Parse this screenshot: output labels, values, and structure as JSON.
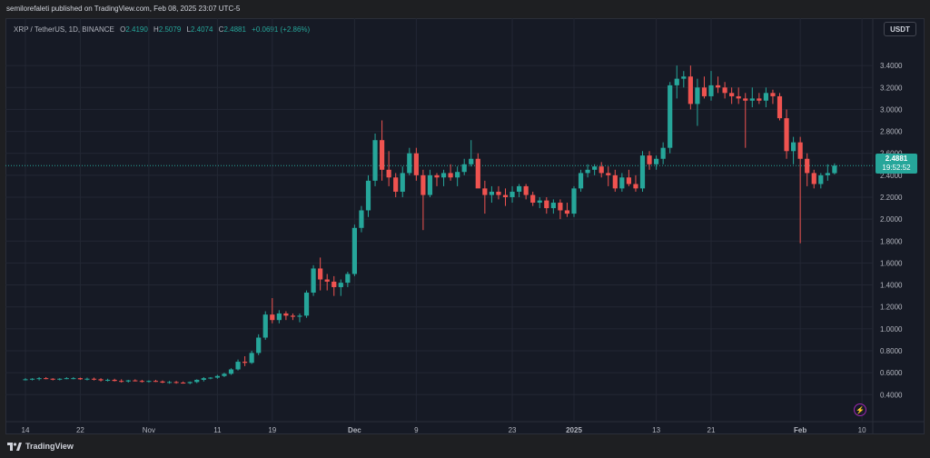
{
  "header": {
    "published": "semilorefaleti published on TradingView.com, Feb 08, 2025 23:07 UTC-5"
  },
  "legend": {
    "symbol": "XRP / TetherUS, 1D, BINANCE",
    "open_label": "O",
    "open": "2.4190",
    "high_label": "H",
    "high": "2.5079",
    "low_label": "L",
    "low": "2.4074",
    "close_label": "C",
    "close": "2.4881",
    "change": "+0.0691 (+2.86%)"
  },
  "currency_button": "USDT",
  "last_price": {
    "value": "2.4881",
    "countdown": "19:52:52"
  },
  "footer": {
    "brand": "TradingView"
  },
  "colors": {
    "up": "#26a69a",
    "down": "#ef5350",
    "background": "#161a25",
    "grid": "#232734",
    "text": "#b2b5be"
  },
  "chart_data": {
    "type": "candlestick",
    "y_ticks": [
      "3.4000",
      "3.2000",
      "3.0000",
      "2.8000",
      "2.6000",
      "2.4000",
      "2.2000",
      "2.0000",
      "1.8000",
      "1.6000",
      "1.4000",
      "1.2000",
      "1.0000",
      "0.8000",
      "0.6000",
      "0.4000"
    ],
    "ylim": [
      0.22,
      3.6
    ],
    "x_ticks": [
      "14",
      "22",
      "Nov",
      "11",
      "19",
      "Dec",
      "9",
      "23",
      "2025",
      "13",
      "21",
      "Feb",
      "10"
    ],
    "x_tick_days": [
      0,
      8,
      18,
      28,
      36,
      48,
      57,
      71,
      80,
      92,
      100,
      113,
      122
    ],
    "bold_ticks": [
      "Dec",
      "2025",
      "Feb"
    ],
    "grid": true,
    "candles": [
      [
        0.54,
        0.55,
        0.53,
        0.54
      ],
      [
        0.54,
        0.55,
        0.53,
        0.545
      ],
      [
        0.545,
        0.56,
        0.53,
        0.55
      ],
      [
        0.55,
        0.56,
        0.54,
        0.545
      ],
      [
        0.545,
        0.55,
        0.53,
        0.54
      ],
      [
        0.54,
        0.55,
        0.53,
        0.545
      ],
      [
        0.545,
        0.56,
        0.54,
        0.55
      ],
      [
        0.55,
        0.56,
        0.54,
        0.55
      ],
      [
        0.55,
        0.555,
        0.535,
        0.54
      ],
      [
        0.54,
        0.555,
        0.53,
        0.545
      ],
      [
        0.545,
        0.555,
        0.53,
        0.54
      ],
      [
        0.54,
        0.55,
        0.52,
        0.53
      ],
      [
        0.53,
        0.545,
        0.52,
        0.535
      ],
      [
        0.535,
        0.545,
        0.52,
        0.525
      ],
      [
        0.525,
        0.54,
        0.51,
        0.52
      ],
      [
        0.52,
        0.535,
        0.51,
        0.53
      ],
      [
        0.53,
        0.54,
        0.52,
        0.525
      ],
      [
        0.525,
        0.535,
        0.51,
        0.52
      ],
      [
        0.52,
        0.53,
        0.51,
        0.525
      ],
      [
        0.525,
        0.535,
        0.515,
        0.52
      ],
      [
        0.52,
        0.53,
        0.505,
        0.51
      ],
      [
        0.51,
        0.525,
        0.5,
        0.515
      ],
      [
        0.515,
        0.525,
        0.5,
        0.51
      ],
      [
        0.51,
        0.52,
        0.5,
        0.505
      ],
      [
        0.505,
        0.52,
        0.495,
        0.515
      ],
      [
        0.515,
        0.54,
        0.505,
        0.535
      ],
      [
        0.535,
        0.56,
        0.52,
        0.55
      ],
      [
        0.55,
        0.56,
        0.54,
        0.555
      ],
      [
        0.555,
        0.58,
        0.545,
        0.57
      ],
      [
        0.57,
        0.6,
        0.56,
        0.59
      ],
      [
        0.59,
        0.64,
        0.58,
        0.63
      ],
      [
        0.63,
        0.72,
        0.62,
        0.7
      ],
      [
        0.7,
        0.75,
        0.66,
        0.69
      ],
      [
        0.69,
        0.8,
        0.68,
        0.78
      ],
      [
        0.78,
        0.95,
        0.76,
        0.92
      ],
      [
        0.92,
        1.16,
        0.9,
        1.13
      ],
      [
        1.13,
        1.28,
        1.05,
        1.08
      ],
      [
        1.08,
        1.17,
        1.05,
        1.14
      ],
      [
        1.14,
        1.16,
        1.08,
        1.12
      ],
      [
        1.12,
        1.14,
        1.08,
        1.11
      ],
      [
        1.11,
        1.14,
        1.06,
        1.12
      ],
      [
        1.12,
        1.35,
        1.1,
        1.33
      ],
      [
        1.33,
        1.58,
        1.3,
        1.55
      ],
      [
        1.55,
        1.65,
        1.35,
        1.45
      ],
      [
        1.45,
        1.5,
        1.35,
        1.43
      ],
      [
        1.43,
        1.48,
        1.3,
        1.38
      ],
      [
        1.38,
        1.45,
        1.3,
        1.42
      ],
      [
        1.42,
        1.52,
        1.38,
        1.5
      ],
      [
        1.5,
        1.95,
        1.48,
        1.92
      ],
      [
        1.92,
        2.12,
        1.88,
        2.08
      ],
      [
        2.08,
        2.4,
        2.02,
        2.35
      ],
      [
        2.35,
        2.78,
        2.3,
        2.72
      ],
      [
        2.72,
        2.9,
        2.35,
        2.45
      ],
      [
        2.45,
        2.62,
        2.3,
        2.38
      ],
      [
        2.38,
        2.42,
        2.2,
        2.25
      ],
      [
        2.25,
        2.48,
        2.2,
        2.42
      ],
      [
        2.42,
        2.65,
        2.4,
        2.6
      ],
      [
        2.6,
        2.65,
        2.35,
        2.4
      ],
      [
        2.4,
        2.45,
        1.9,
        2.22
      ],
      [
        2.22,
        2.45,
        2.2,
        2.4
      ],
      [
        2.4,
        2.42,
        2.3,
        2.38
      ],
      [
        2.38,
        2.45,
        2.3,
        2.42
      ],
      [
        2.42,
        2.5,
        2.35,
        2.38
      ],
      [
        2.38,
        2.48,
        2.3,
        2.43
      ],
      [
        2.43,
        2.55,
        2.4,
        2.5
      ],
      [
        2.5,
        2.72,
        2.48,
        2.55
      ],
      [
        2.55,
        2.6,
        2.3,
        2.28
      ],
      [
        2.28,
        2.35,
        2.05,
        2.22
      ],
      [
        2.22,
        2.3,
        2.15,
        2.25
      ],
      [
        2.25,
        2.3,
        2.18,
        2.22
      ],
      [
        2.22,
        2.28,
        2.12,
        2.2
      ],
      [
        2.2,
        2.3,
        2.15,
        2.25
      ],
      [
        2.25,
        2.32,
        2.2,
        2.3
      ],
      [
        2.3,
        2.32,
        2.18,
        2.22
      ],
      [
        2.22,
        2.25,
        2.12,
        2.15
      ],
      [
        2.15,
        2.2,
        2.1,
        2.17
      ],
      [
        2.17,
        2.2,
        2.05,
        2.1
      ],
      [
        2.1,
        2.18,
        2.05,
        2.15
      ],
      [
        2.15,
        2.18,
        2.0,
        2.08
      ],
      [
        2.08,
        2.15,
        2.02,
        2.05
      ],
      [
        2.05,
        2.3,
        2.02,
        2.28
      ],
      [
        2.28,
        2.45,
        2.25,
        2.42
      ],
      [
        2.42,
        2.5,
        2.38,
        2.45
      ],
      [
        2.45,
        2.5,
        2.4,
        2.48
      ],
      [
        2.48,
        2.52,
        2.38,
        2.42
      ],
      [
        2.42,
        2.48,
        2.3,
        2.4
      ],
      [
        2.4,
        2.45,
        2.25,
        2.28
      ],
      [
        2.28,
        2.42,
        2.25,
        2.38
      ],
      [
        2.38,
        2.45,
        2.3,
        2.32
      ],
      [
        2.32,
        2.4,
        2.25,
        2.28
      ],
      [
        2.28,
        2.62,
        2.25,
        2.58
      ],
      [
        2.58,
        2.62,
        2.45,
        2.5
      ],
      [
        2.5,
        2.58,
        2.45,
        2.55
      ],
      [
        2.55,
        2.7,
        2.5,
        2.65
      ],
      [
        2.65,
        3.25,
        2.6,
        3.22
      ],
      [
        3.22,
        3.4,
        3.1,
        3.28
      ],
      [
        3.28,
        3.35,
        3.2,
        3.3
      ],
      [
        3.3,
        3.4,
        3.0,
        3.05
      ],
      [
        3.05,
        3.28,
        2.85,
        3.2
      ],
      [
        3.2,
        3.3,
        3.1,
        3.12
      ],
      [
        3.12,
        3.35,
        3.08,
        3.22
      ],
      [
        3.22,
        3.3,
        3.15,
        3.2
      ],
      [
        3.2,
        3.25,
        3.1,
        3.15
      ],
      [
        3.15,
        3.2,
        3.05,
        3.12
      ],
      [
        3.12,
        3.2,
        3.05,
        3.1
      ],
      [
        3.1,
        3.15,
        2.65,
        3.08
      ],
      [
        3.08,
        3.2,
        3.02,
        3.1
      ],
      [
        3.1,
        3.15,
        3.05,
        3.08
      ],
      [
        3.08,
        3.2,
        3.02,
        3.15
      ],
      [
        3.15,
        3.18,
        3.05,
        3.12
      ],
      [
        3.12,
        3.15,
        2.9,
        2.92
      ],
      [
        2.92,
        3.0,
        2.55,
        2.62
      ],
      [
        2.62,
        2.75,
        2.5,
        2.7
      ],
      [
        2.7,
        2.75,
        1.78,
        2.55
      ],
      [
        2.55,
        2.6,
        2.3,
        2.42
      ],
      [
        2.42,
        2.45,
        2.28,
        2.32
      ],
      [
        2.32,
        2.42,
        2.28,
        2.4
      ],
      [
        2.4,
        2.5,
        2.35,
        2.42
      ],
      [
        2.419,
        2.5079,
        2.4074,
        2.4881
      ]
    ]
  }
}
